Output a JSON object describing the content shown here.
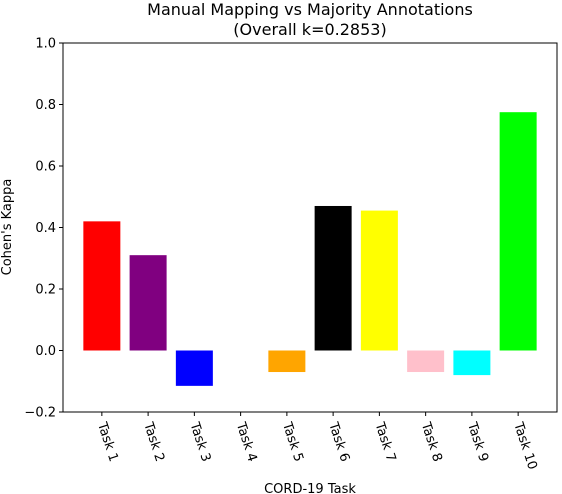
{
  "chart_data": {
    "type": "bar",
    "title": "Manual Mapping vs Majority Annotations",
    "subtitle": "(Overall k=0.2853)",
    "xlabel": "CORD-19 Task",
    "ylabel": "Cohen's Kappa",
    "ylim": [
      -0.2,
      1.0
    ],
    "yticks": [
      "−0.2",
      "0.0",
      "0.2",
      "0.4",
      "0.6",
      "0.8",
      "1.0"
    ],
    "ytick_values": [
      -0.2,
      0.0,
      0.2,
      0.4,
      0.6,
      0.8,
      1.0
    ],
    "categories": [
      "Task 1",
      "Task 2",
      "Task 3",
      "Task 4",
      "Task 5",
      "Task 6",
      "Task 7",
      "Task 8",
      "Task 9",
      "Task 10"
    ],
    "values": [
      0.42,
      0.31,
      -0.115,
      0.0,
      -0.07,
      0.47,
      0.455,
      -0.07,
      -0.08,
      0.775
    ],
    "colors": [
      "#ff0000",
      "#800080",
      "#0000ff",
      "#ffffff",
      "#ffa500",
      "#000000",
      "#ffff00",
      "#ffc0cb",
      "#00ffff",
      "#00ff00"
    ],
    "grid": false,
    "legend": "none"
  }
}
